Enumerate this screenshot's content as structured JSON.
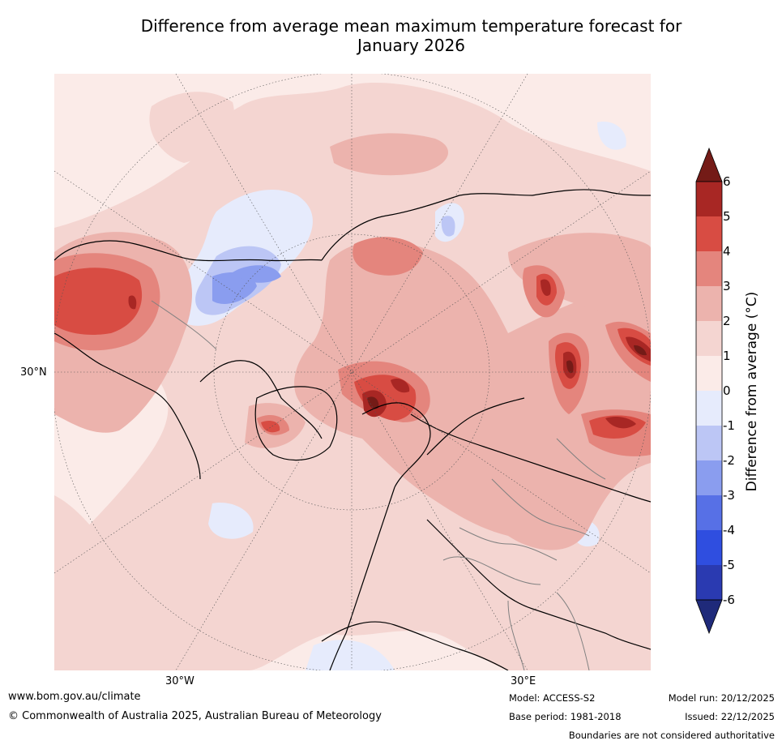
{
  "title": {
    "line1": "Difference from average mean maximum temperature forecast for",
    "line2": "January 2026"
  },
  "map": {
    "projection_labels": {
      "lat_30n": "30°N",
      "lon_30w": "30°W",
      "lon_30e": "30°E"
    },
    "colors": {
      "anom_neg6_below": "#1f2a7a",
      "anom_neg6_neg5": "#2a3ab1",
      "anom_neg5_neg4": "#2f4ee0",
      "anom_neg4_neg3": "#5770e6",
      "anom_neg3_neg2": "#8a9def",
      "anom_neg2_neg1": "#bcc6f5",
      "anom_neg1_0": "#e6ebfc",
      "anom_0_1": "#fbebe8",
      "anom_1_2": "#f4d5d1",
      "anom_2_3": "#ecb3ad",
      "anom_3_4": "#e4857d",
      "anom_4_5": "#d84c43",
      "anom_5_6": "#a82724",
      "anom_above_6": "#741b17"
    }
  },
  "colorbar": {
    "title": "Difference from average (°C)",
    "ticks": [
      "6",
      "5",
      "4",
      "3",
      "2",
      "1",
      "0",
      "-1",
      "-2",
      "-3",
      "-4",
      "-5",
      "-6"
    ]
  },
  "footer": {
    "website": "www.bom.gov.au/climate",
    "copyright": "© Commonwealth of Australia 2025, Australian Bureau of Meteorology",
    "model": "Model: ACCESS-S2",
    "base_period": "Base period: 1981-2018",
    "model_run": "Model run: 20/12/2025",
    "issued": "Issued: 22/12/2025",
    "disclaimer": "Boundaries are not considered authoritative"
  }
}
